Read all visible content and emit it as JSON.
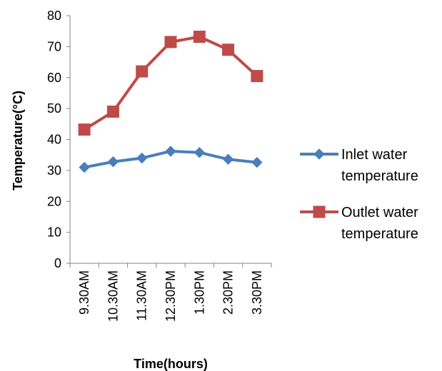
{
  "chart_data": {
    "type": "line",
    "title": "",
    "xlabel": "Time(hours)",
    "ylabel": "Temperature(°C)",
    "ylim": [
      0,
      80
    ],
    "yticks": [
      0,
      10,
      20,
      30,
      40,
      50,
      60,
      70,
      80
    ],
    "categories": [
      "9.30AM",
      "10.30AM",
      "11.30AM",
      "12.30PM",
      "1.30PM",
      "2.30PM",
      "3.30PM"
    ],
    "grid": false,
    "legend_position": "right",
    "series": [
      {
        "name_lines": [
          "Inlet water",
          "temperature"
        ],
        "color": "#4a7ebb",
        "marker": "diamond",
        "values": [
          31,
          32.8,
          34,
          36.2,
          35.8,
          33.6,
          32.6
        ]
      },
      {
        "name_lines": [
          "Outlet water",
          "temperature"
        ],
        "color": "#be4b48",
        "marker": "square",
        "values": [
          43.2,
          49,
          62,
          71.5,
          73.2,
          69,
          60.5
        ]
      }
    ]
  }
}
